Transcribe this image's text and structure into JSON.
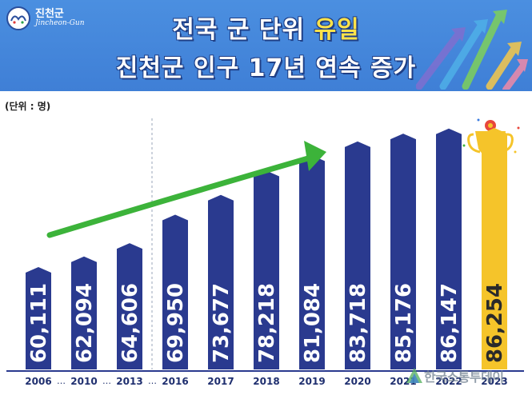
{
  "header": {
    "logo_name": "진천군",
    "logo_sub": "Jincheon-Gun",
    "title_line1_prefix": "전국 군 단위 ",
    "title_line1_highlight": "유일",
    "title_line2": "진천군 인구 17년 연속 증가"
  },
  "unit_label": "(단위 : 명)",
  "watermark": "한국소통투데이",
  "colors": {
    "header_bg": "#3f7fd6",
    "bar": "#2a3a8f",
    "bar_highlight": "#f5c42a",
    "trend_arrow": "#3cb33a"
  },
  "chart_data": {
    "type": "bar",
    "categories": [
      "2006",
      "2010",
      "2013",
      "2016",
      "2017",
      "2018",
      "2019",
      "2020",
      "2021",
      "2022",
      "2023"
    ],
    "values": [
      60111,
      62094,
      64606,
      69950,
      73677,
      78218,
      81084,
      83718,
      85176,
      86147,
      86254
    ],
    "value_labels": [
      "60,111",
      "62,094",
      "64,606",
      "69,950",
      "73,677",
      "78,218",
      "81,084",
      "83,718",
      "85,176",
      "86,147",
      "86,254"
    ],
    "axis_separators": [
      "…",
      "…",
      "…"
    ],
    "highlight_category": "2023",
    "grid": false,
    "ylabel": "(단위 : 명)"
  }
}
